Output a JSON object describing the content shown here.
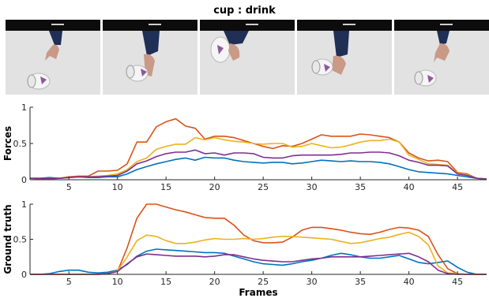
{
  "title": "cup : drink",
  "frames_strip": {
    "icon": "video-frame-thumbnails",
    "thumbnails": [
      {
        "name": "frame-thumbnail-1",
        "pose": "reach"
      },
      {
        "name": "frame-thumbnail-2",
        "pose": "grasp"
      },
      {
        "name": "frame-thumbnail-3",
        "pose": "lift"
      },
      {
        "name": "frame-thumbnail-4",
        "pose": "place"
      },
      {
        "name": "frame-thumbnail-5",
        "pose": "release"
      }
    ]
  },
  "colors": {
    "series_1": "#0072BD",
    "series_2": "#D95319",
    "series_3": "#EDB120",
    "series_4": "#7E2F8E",
    "axis": "#262626",
    "background": "#ffffff"
  },
  "chart_data": [
    {
      "type": "line",
      "xlabel": "",
      "ylabel": "Forces",
      "xlim": [
        1,
        48
      ],
      "ylim": [
        0,
        1
      ],
      "xticks": [
        5,
        10,
        15,
        20,
        25,
        30,
        35,
        40,
        45
      ],
      "yticks": [
        0,
        0.5,
        1
      ],
      "ytick_labels": [
        "0",
        "0.5",
        "1"
      ],
      "grid": false,
      "x": [
        1,
        2,
        3,
        4,
        5,
        6,
        7,
        8,
        9,
        10,
        11,
        12,
        13,
        14,
        15,
        16,
        17,
        18,
        19,
        20,
        21,
        22,
        23,
        24,
        25,
        26,
        27,
        28,
        29,
        30,
        31,
        32,
        33,
        34,
        35,
        36,
        37,
        38,
        39,
        40,
        41,
        42,
        43,
        44,
        45,
        46,
        47,
        48
      ],
      "series": [
        {
          "color": "#0072BD",
          "values": [
            0.02,
            0.02,
            0.03,
            0.02,
            0.03,
            0.04,
            0.03,
            0.03,
            0.04,
            0.04,
            0.08,
            0.14,
            0.18,
            0.22,
            0.25,
            0.28,
            0.3,
            0.27,
            0.31,
            0.3,
            0.3,
            0.27,
            0.25,
            0.24,
            0.23,
            0.24,
            0.24,
            0.22,
            0.23,
            0.25,
            0.27,
            0.26,
            0.25,
            0.26,
            0.25,
            0.25,
            0.24,
            0.22,
            0.18,
            0.14,
            0.11,
            0.1,
            0.09,
            0.08,
            0.06,
            0.04,
            0.02,
            0.01
          ]
        },
        {
          "color": "#D95319",
          "values": [
            0.02,
            0.01,
            0.01,
            0.02,
            0.04,
            0.05,
            0.05,
            0.12,
            0.12,
            0.13,
            0.22,
            0.52,
            0.52,
            0.73,
            0.8,
            0.84,
            0.74,
            0.71,
            0.56,
            0.6,
            0.6,
            0.58,
            0.54,
            0.5,
            0.46,
            0.43,
            0.47,
            0.46,
            0.5,
            0.56,
            0.62,
            0.6,
            0.6,
            0.6,
            0.63,
            0.62,
            0.6,
            0.58,
            0.52,
            0.37,
            0.3,
            0.26,
            0.27,
            0.25,
            0.1,
            0.08,
            0.02,
            0.01
          ]
        },
        {
          "color": "#EDB120",
          "values": [
            0.02,
            0.02,
            0.02,
            0.02,
            0.03,
            0.04,
            0.04,
            0.05,
            0.06,
            0.08,
            0.14,
            0.25,
            0.3,
            0.42,
            0.46,
            0.49,
            0.49,
            0.58,
            0.55,
            0.58,
            0.55,
            0.53,
            0.52,
            0.5,
            0.49,
            0.5,
            0.5,
            0.45,
            0.46,
            0.5,
            0.47,
            0.44,
            0.45,
            0.48,
            0.52,
            0.54,
            0.54,
            0.56,
            0.52,
            0.34,
            0.28,
            0.22,
            0.21,
            0.2,
            0.09,
            0.07,
            0.02,
            0.01
          ]
        },
        {
          "color": "#7E2F8E",
          "values": [
            0.02,
            0.02,
            0.02,
            0.02,
            0.03,
            0.04,
            0.04,
            0.04,
            0.05,
            0.06,
            0.12,
            0.22,
            0.26,
            0.32,
            0.36,
            0.38,
            0.38,
            0.41,
            0.36,
            0.37,
            0.34,
            0.37,
            0.37,
            0.36,
            0.31,
            0.3,
            0.3,
            0.33,
            0.34,
            0.34,
            0.34,
            0.34,
            0.35,
            0.37,
            0.37,
            0.38,
            0.38,
            0.37,
            0.33,
            0.27,
            0.24,
            0.2,
            0.2,
            0.19,
            0.08,
            0.06,
            0.02,
            0.01
          ]
        }
      ]
    },
    {
      "type": "line",
      "xlabel": "Frames",
      "ylabel": "Ground truth",
      "xlim": [
        1,
        48
      ],
      "ylim": [
        0,
        1
      ],
      "xticks": [
        5,
        10,
        15,
        20,
        25,
        30,
        35,
        40,
        45
      ],
      "yticks": [
        0,
        0.5,
        1
      ],
      "ytick_labels": [
        "0",
        "0.5",
        "1"
      ],
      "grid": false,
      "x": [
        1,
        2,
        3,
        4,
        5,
        6,
        7,
        8,
        9,
        10,
        11,
        12,
        13,
        14,
        15,
        16,
        17,
        18,
        19,
        20,
        21,
        22,
        23,
        24,
        25,
        26,
        27,
        28,
        29,
        30,
        31,
        32,
        33,
        34,
        35,
        36,
        37,
        38,
        39,
        40,
        41,
        42,
        43,
        44,
        45,
        46,
        47,
        48
      ],
      "series": [
        {
          "color": "#0072BD",
          "values": [
            0.0,
            0.0,
            0.01,
            0.04,
            0.06,
            0.06,
            0.03,
            0.02,
            0.03,
            0.06,
            0.14,
            0.26,
            0.33,
            0.36,
            0.35,
            0.34,
            0.33,
            0.32,
            0.31,
            0.31,
            0.3,
            0.26,
            0.22,
            0.18,
            0.15,
            0.14,
            0.13,
            0.15,
            0.18,
            0.2,
            0.23,
            0.27,
            0.3,
            0.28,
            0.25,
            0.23,
            0.23,
            0.25,
            0.27,
            0.22,
            0.17,
            0.15,
            0.17,
            0.19,
            0.1,
            0.03,
            0.0,
            0.0
          ]
        },
        {
          "color": "#D95319",
          "values": [
            0.0,
            0.0,
            0.0,
            0.0,
            0.0,
            0.0,
            0.0,
            0.0,
            0.01,
            0.04,
            0.38,
            0.8,
            1.0,
            1.0,
            0.96,
            0.92,
            0.89,
            0.85,
            0.81,
            0.8,
            0.8,
            0.7,
            0.56,
            0.48,
            0.45,
            0.45,
            0.46,
            0.53,
            0.63,
            0.67,
            0.67,
            0.65,
            0.63,
            0.6,
            0.58,
            0.57,
            0.6,
            0.64,
            0.67,
            0.66,
            0.63,
            0.54,
            0.28,
            0.08,
            0.01,
            0.0,
            0.0,
            0.0
          ]
        },
        {
          "color": "#EDB120",
          "values": [
            0.0,
            0.0,
            0.0,
            0.0,
            0.0,
            0.0,
            0.0,
            0.0,
            0.01,
            0.05,
            0.25,
            0.48,
            0.56,
            0.54,
            0.48,
            0.44,
            0.44,
            0.46,
            0.49,
            0.51,
            0.5,
            0.5,
            0.51,
            0.5,
            0.51,
            0.53,
            0.54,
            0.54,
            0.53,
            0.52,
            0.51,
            0.5,
            0.47,
            0.44,
            0.45,
            0.48,
            0.51,
            0.53,
            0.57,
            0.6,
            0.54,
            0.42,
            0.12,
            0.02,
            0.01,
            0.0,
            0.0,
            0.0
          ]
        },
        {
          "color": "#7E2F8E",
          "values": [
            0.0,
            0.0,
            0.0,
            0.0,
            0.0,
            0.0,
            0.0,
            0.0,
            0.01,
            0.04,
            0.15,
            0.25,
            0.29,
            0.28,
            0.27,
            0.26,
            0.26,
            0.26,
            0.25,
            0.26,
            0.28,
            0.28,
            0.25,
            0.22,
            0.2,
            0.19,
            0.18,
            0.18,
            0.2,
            0.22,
            0.23,
            0.25,
            0.25,
            0.25,
            0.25,
            0.26,
            0.27,
            0.28,
            0.29,
            0.3,
            0.25,
            0.18,
            0.06,
            0.01,
            0.0,
            0.0,
            0.0,
            0.0
          ]
        }
      ]
    }
  ]
}
